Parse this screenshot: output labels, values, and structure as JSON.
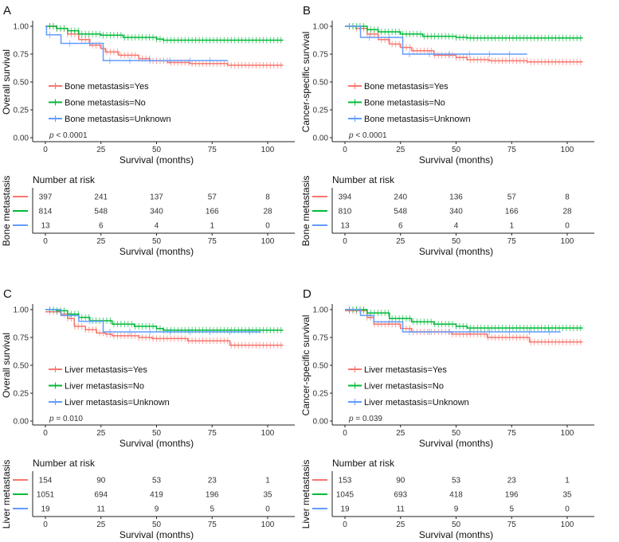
{
  "colors": {
    "Yes": "#F8766D",
    "No": "#00BA38",
    "Unknown": "#619CFF"
  },
  "chart_data": [
    {
      "type": "line",
      "panel": "A",
      "ylabel": "Overall survival",
      "xlabel": "Survival (months)",
      "xlim": [
        0,
        107
      ],
      "ylim": [
        0,
        1
      ],
      "xticks": [
        "0",
        "25",
        "50",
        "75",
        "100"
      ],
      "yticks": [
        "0.00",
        "0.25",
        "0.50",
        "0.75",
        "1.00"
      ],
      "pvalue": "p < 0.0001",
      "p_symbol": "p",
      "p_text": "< 0.0001",
      "risk_title": "Number at risk",
      "risk_ylabel": "Bone metastasis",
      "risk_xlabel": "Survival (months)",
      "series": [
        {
          "key": "Yes",
          "name": "Bone metastasis=Yes",
          "risk": [
            397,
            241,
            137,
            57,
            8
          ],
          "points": [
            [
              0,
              1
            ],
            [
              5,
              0.98
            ],
            [
              10,
              0.93
            ],
            [
              15,
              0.88
            ],
            [
              20,
              0.83
            ],
            [
              25,
              0.8
            ],
            [
              27,
              0.77
            ],
            [
              33,
              0.74
            ],
            [
              42,
              0.71
            ],
            [
              47,
              0.69
            ],
            [
              55,
              0.675
            ],
            [
              65,
              0.665
            ],
            [
              82,
              0.65
            ],
            [
              107,
              0.65
            ]
          ]
        },
        {
          "key": "No",
          "name": "Bone metastasis=No",
          "risk": [
            814,
            548,
            340,
            166,
            28
          ],
          "points": [
            [
              0,
              1
            ],
            [
              5,
              0.98
            ],
            [
              10,
              0.96
            ],
            [
              15,
              0.93
            ],
            [
              25,
              0.92
            ],
            [
              35,
              0.9
            ],
            [
              50,
              0.885
            ],
            [
              53,
              0.875
            ],
            [
              107,
              0.875
            ]
          ]
        },
        {
          "key": "Unknown",
          "name": "Bone metastasis=Unknown",
          "risk": [
            13,
            6,
            4,
            1,
            0
          ],
          "points": [
            [
              0,
              1
            ],
            [
              0.5,
              0.923
            ],
            [
              7,
              0.846
            ],
            [
              26,
              0.692
            ],
            [
              82,
              0.692
            ]
          ]
        }
      ]
    },
    {
      "type": "line",
      "panel": "B",
      "ylabel": "Cancer-specific survival",
      "xlabel": "Survival (months)",
      "xlim": [
        0,
        107
      ],
      "ylim": [
        0,
        1
      ],
      "xticks": [
        "0",
        "25",
        "50",
        "75",
        "100"
      ],
      "yticks": [
        "0.00",
        "0.25",
        "0.50",
        "0.75",
        "1.00"
      ],
      "pvalue": "p < 0.0001",
      "p_symbol": "p",
      "p_text": "< 0.0001",
      "risk_title": "Number at risk",
      "risk_ylabel": "Bone metastasis",
      "risk_xlabel": "Survival (months)",
      "series": [
        {
          "key": "Yes",
          "name": "Bone metastasis=Yes",
          "risk": [
            394,
            240,
            136,
            57,
            8
          ],
          "points": [
            [
              0,
              1
            ],
            [
              5,
              0.98
            ],
            [
              10,
              0.93
            ],
            [
              15,
              0.88
            ],
            [
              20,
              0.84
            ],
            [
              25,
              0.81
            ],
            [
              30,
              0.78
            ],
            [
              40,
              0.74
            ],
            [
              50,
              0.72
            ],
            [
              55,
              0.7
            ],
            [
              65,
              0.69
            ],
            [
              82,
              0.68
            ],
            [
              107,
              0.68
            ]
          ]
        },
        {
          "key": "No",
          "name": "Bone metastasis=No",
          "risk": [
            810,
            548,
            340,
            166,
            28
          ],
          "points": [
            [
              0,
              1
            ],
            [
              10,
              0.97
            ],
            [
              15,
              0.95
            ],
            [
              25,
              0.93
            ],
            [
              35,
              0.91
            ],
            [
              50,
              0.9
            ],
            [
              55,
              0.895
            ],
            [
              107,
              0.895
            ]
          ]
        },
        {
          "key": "Unknown",
          "name": "Bone metastasis=Unknown",
          "risk": [
            13,
            6,
            4,
            1,
            0
          ],
          "points": [
            [
              0,
              1
            ],
            [
              7,
              0.9
            ],
            [
              26,
              0.75
            ],
            [
              82,
              0.75
            ]
          ]
        }
      ]
    },
    {
      "type": "line",
      "panel": "C",
      "ylabel": "Overall survival",
      "xlabel": "Survival (months)",
      "xlim": [
        0,
        107
      ],
      "ylim": [
        0,
        1
      ],
      "xticks": [
        "0",
        "25",
        "50",
        "75",
        "100"
      ],
      "yticks": [
        "0.00",
        "0.25",
        "0.50",
        "0.75",
        "1.00"
      ],
      "pvalue": "p = 0.010",
      "p_symbol": "p",
      "p_text": "= 0.010",
      "risk_title": "Number at risk",
      "risk_ylabel": "Liver metastasis",
      "risk_xlabel": "Survival (months)",
      "series": [
        {
          "key": "Yes",
          "name": "Liver metastasis=Yes",
          "risk": [
            154,
            90,
            53,
            23,
            1
          ],
          "points": [
            [
              0,
              0.98
            ],
            [
              7,
              0.96
            ],
            [
              10,
              0.92
            ],
            [
              13,
              0.85
            ],
            [
              18,
              0.82
            ],
            [
              23,
              0.79
            ],
            [
              27,
              0.78
            ],
            [
              30,
              0.765
            ],
            [
              42,
              0.75
            ],
            [
              48,
              0.74
            ],
            [
              64,
              0.72
            ],
            [
              83,
              0.68
            ],
            [
              107,
              0.68
            ]
          ]
        },
        {
          "key": "No",
          "name": "Liver metastasis=No",
          "risk": [
            1051,
            694,
            419,
            196,
            35
          ],
          "points": [
            [
              0,
              1
            ],
            [
              5,
              0.99
            ],
            [
              10,
              0.96
            ],
            [
              15,
              0.93
            ],
            [
              20,
              0.9
            ],
            [
              30,
              0.87
            ],
            [
              40,
              0.85
            ],
            [
              50,
              0.83
            ],
            [
              53,
              0.815
            ],
            [
              107,
              0.815
            ]
          ]
        },
        {
          "key": "Unknown",
          "name": "Liver metastasis=Unknown",
          "risk": [
            19,
            11,
            9,
            5,
            0
          ],
          "points": [
            [
              0,
              1
            ],
            [
              7,
              0.947
            ],
            [
              15,
              0.895
            ],
            [
              26,
              0.8
            ],
            [
              97,
              0.8
            ]
          ]
        }
      ]
    },
    {
      "type": "line",
      "panel": "D",
      "ylabel": "Cancer-specific survival",
      "xlabel": "Survival (months)",
      "xlim": [
        0,
        107
      ],
      "ylim": [
        0,
        1
      ],
      "xticks": [
        "0",
        "25",
        "50",
        "75",
        "100"
      ],
      "yticks": [
        "0.00",
        "0.25",
        "0.50",
        "0.75",
        "1.00"
      ],
      "pvalue": "p = 0.039",
      "p_symbol": "p",
      "p_text": "= 0.039",
      "risk_title": "Number at risk",
      "risk_ylabel": "Liver metastasis",
      "risk_xlabel": "Survival (months)",
      "series": [
        {
          "key": "Yes",
          "name": "Liver metastasis=Yes",
          "risk": [
            153,
            90,
            53,
            23,
            1
          ],
          "points": [
            [
              0,
              0.99
            ],
            [
              10,
              0.93
            ],
            [
              13,
              0.87
            ],
            [
              25,
              0.83
            ],
            [
              30,
              0.8
            ],
            [
              48,
              0.78
            ],
            [
              64,
              0.75
            ],
            [
              83,
              0.71
            ],
            [
              107,
              0.71
            ]
          ]
        },
        {
          "key": "No",
          "name": "Liver metastasis=No",
          "risk": [
            1045,
            693,
            418,
            196,
            35
          ],
          "points": [
            [
              0,
              1
            ],
            [
              10,
              0.97
            ],
            [
              20,
              0.92
            ],
            [
              30,
              0.89
            ],
            [
              40,
              0.87
            ],
            [
              50,
              0.85
            ],
            [
              55,
              0.835
            ],
            [
              107,
              0.835
            ]
          ]
        },
        {
          "key": "Unknown",
          "name": "Liver metastasis=Unknown",
          "risk": [
            19,
            11,
            9,
            5,
            0
          ],
          "points": [
            [
              0,
              1
            ],
            [
              7,
              0.947
            ],
            [
              13,
              0.89
            ],
            [
              26,
              0.8
            ],
            [
              97,
              0.8
            ]
          ]
        }
      ]
    }
  ]
}
